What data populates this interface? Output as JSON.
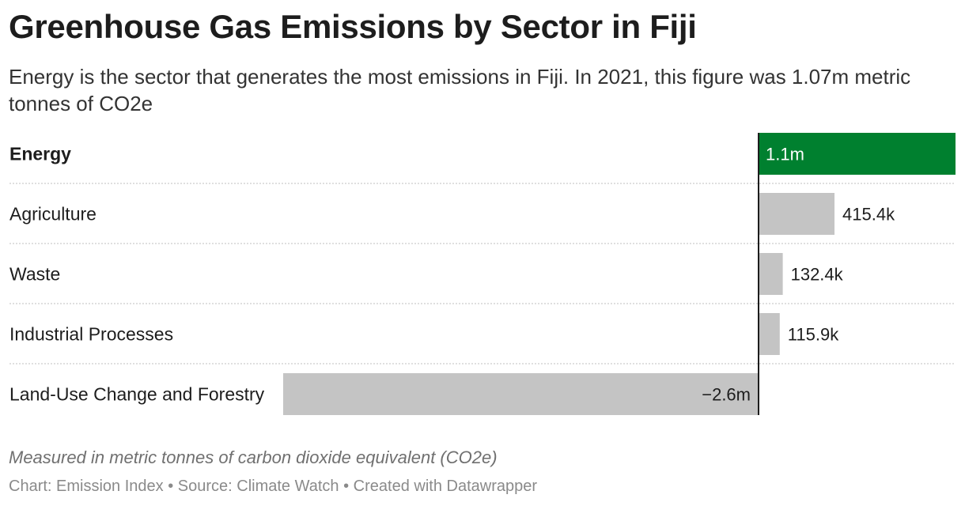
{
  "header": {
    "title": "Greenhouse Gas Emissions by Sector in Fiji",
    "subtitle": "Energy is the sector that generates the most emissions in Fiji. In 2021, this figure was 1.07m metric tonnes of CO2e"
  },
  "notes": "Measured in metric tonnes of carbon dioxide equivalent (CO2e)",
  "footer": {
    "chart_credit": "Chart: Emission Index",
    "source": "Source: Climate Watch",
    "created_with": "Created with Datawrapper",
    "separator": " • "
  },
  "colors": {
    "highlight": "#00802f",
    "bar": "#c4c4c4",
    "axis": "#1d1d1d",
    "row_divider": "#cccccc"
  },
  "chart_data": {
    "type": "bar",
    "orientation": "horizontal",
    "categories": [
      "Energy",
      "Agriculture",
      "Waste",
      "Industrial Processes",
      "Land-Use Change and Forestry"
    ],
    "values": [
      1070000,
      415400,
      132400,
      115900,
      -2600000
    ],
    "value_labels": [
      "1.1m",
      "415.4k",
      "132.4k",
      "115.9k",
      "−2.6m"
    ],
    "highlight": "Energy",
    "unit": "metric tonnes of CO2e"
  }
}
